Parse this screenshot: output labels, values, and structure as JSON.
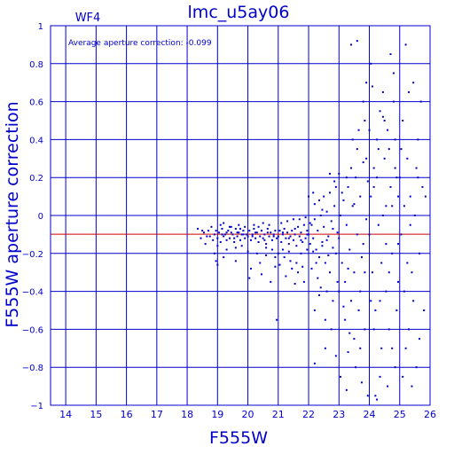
{
  "chart_data": {
    "type": "scatter",
    "title": "lmc_u5ay06",
    "chip_label": "WF4",
    "annotation": "Average aperture correction: -0.099",
    "xlabel": "F555W",
    "ylabel": "F555W aperture correction",
    "xlim": [
      13.5,
      26
    ],
    "ylim": [
      -1,
      1
    ],
    "x_ticks": [
      14,
      15,
      16,
      17,
      18,
      19,
      20,
      21,
      22,
      23,
      24,
      25,
      26
    ],
    "x_tick_labels": [
      "14",
      "15",
      "16",
      "17",
      "18",
      "19",
      "20",
      "21",
      "22",
      "23",
      "24",
      "25",
      "26"
    ],
    "y_ticks": [
      -1,
      -0.8,
      -0.6,
      -0.4,
      -0.2,
      0,
      0.2,
      0.4,
      0.6,
      0.8,
      1
    ],
    "y_tick_labels": [
      "−1",
      "−0.8",
      "−0.6",
      "−0.4",
      "−0.2",
      "0",
      "0.2",
      "0.4",
      "0.6",
      "0.8",
      "1"
    ],
    "grid": true,
    "reference_line": -0.099,
    "colors": {
      "axes": "#0000cc",
      "points": "#0000cc",
      "reference": "#cc0000",
      "background": "#ffffff"
    },
    "points": [
      [
        18.35,
        -0.07
      ],
      [
        18.45,
        -0.12
      ],
      [
        18.55,
        -0.09
      ],
      [
        18.6,
        -0.15
      ],
      [
        18.7,
        -0.08
      ],
      [
        18.75,
        -0.11
      ],
      [
        18.8,
        -0.06
      ],
      [
        18.85,
        -0.13
      ],
      [
        18.9,
        -0.1
      ],
      [
        18.95,
        -0.08
      ],
      [
        19.0,
        -0.12
      ],
      [
        19.05,
        -0.09
      ],
      [
        19.1,
        -0.14
      ],
      [
        19.15,
        -0.07
      ],
      [
        19.2,
        -0.11
      ],
      [
        19.25,
        -0.1
      ],
      [
        19.3,
        -0.13
      ],
      [
        19.35,
        -0.08
      ],
      [
        19.4,
        -0.12
      ],
      [
        19.45,
        -0.09
      ],
      [
        19.5,
        -0.1
      ],
      [
        19.55,
        -0.14
      ],
      [
        19.6,
        -0.07
      ],
      [
        19.65,
        -0.11
      ],
      [
        19.7,
        -0.09
      ],
      [
        19.75,
        -0.13
      ],
      [
        19.8,
        -0.1
      ],
      [
        19.85,
        -0.08
      ],
      [
        19.9,
        -0.12
      ],
      [
        19.95,
        -0.1
      ],
      [
        18.9,
        -0.2
      ],
      [
        19.0,
        -0.16
      ],
      [
        19.1,
        -0.05
      ],
      [
        19.2,
        -0.04
      ],
      [
        19.3,
        -0.18
      ],
      [
        19.4,
        -0.06
      ],
      [
        19.6,
        -0.17
      ],
      [
        19.7,
        -0.05
      ],
      [
        19.8,
        -0.16
      ],
      [
        19.9,
        -0.06
      ],
      [
        20.0,
        -0.11
      ],
      [
        20.05,
        -0.08
      ],
      [
        20.1,
        -0.13
      ],
      [
        20.15,
        -0.1
      ],
      [
        20.2,
        -0.07
      ],
      [
        20.25,
        -0.12
      ],
      [
        20.3,
        -0.09
      ],
      [
        20.35,
        -0.14
      ],
      [
        20.4,
        -0.11
      ],
      [
        20.45,
        -0.08
      ],
      [
        20.5,
        -0.12
      ],
      [
        20.55,
        -0.1
      ],
      [
        20.6,
        -0.15
      ],
      [
        20.65,
        -0.07
      ],
      [
        20.7,
        -0.11
      ],
      [
        20.75,
        -0.09
      ],
      [
        20.8,
        -0.13
      ],
      [
        20.85,
        -0.1
      ],
      [
        20.9,
        -0.08
      ],
      [
        20.95,
        -0.12
      ],
      [
        20.0,
        -0.19
      ],
      [
        20.2,
        -0.05
      ],
      [
        20.3,
        -0.2
      ],
      [
        20.5,
        -0.04
      ],
      [
        20.6,
        -0.21
      ],
      [
        20.7,
        -0.05
      ],
      [
        20.8,
        -0.18
      ],
      [
        20.9,
        -0.22
      ],
      [
        20.4,
        -0.25
      ],
      [
        20.1,
        -0.28
      ],
      [
        19.6,
        -0.24
      ],
      [
        19.2,
        -0.22
      ],
      [
        20.45,
        -0.31
      ],
      [
        20.05,
        -0.33
      ],
      [
        20.9,
        -0.27
      ],
      [
        20.75,
        -0.35
      ],
      [
        20.95,
        -0.55
      ],
      [
        20.6,
        -0.17
      ],
      [
        19.0,
        -0.26
      ],
      [
        18.95,
        -0.24
      ],
      [
        21.0,
        -0.11
      ],
      [
        21.05,
        -0.08
      ],
      [
        21.1,
        -0.14
      ],
      [
        21.15,
        -0.1
      ],
      [
        21.2,
        -0.07
      ],
      [
        21.25,
        -0.12
      ],
      [
        21.3,
        -0.09
      ],
      [
        21.35,
        -0.15
      ],
      [
        21.4,
        -0.11
      ],
      [
        21.45,
        -0.08
      ],
      [
        21.5,
        -0.13
      ],
      [
        21.55,
        -0.1
      ],
      [
        21.6,
        -0.16
      ],
      [
        21.65,
        -0.06
      ],
      [
        21.7,
        -0.11
      ],
      [
        21.75,
        -0.09
      ],
      [
        21.8,
        -0.14
      ],
      [
        21.85,
        -0.05
      ],
      [
        21.9,
        -0.12
      ],
      [
        21.95,
        -0.08
      ],
      [
        21.0,
        -0.2
      ],
      [
        21.1,
        -0.04
      ],
      [
        21.2,
        -0.22
      ],
      [
        21.3,
        -0.03
      ],
      [
        21.4,
        -0.24
      ],
      [
        21.5,
        -0.02
      ],
      [
        21.6,
        -0.25
      ],
      [
        21.7,
        -0.02
      ],
      [
        21.8,
        -0.27
      ],
      [
        21.9,
        -0.01
      ],
      [
        21.25,
        -0.32
      ],
      [
        21.45,
        -0.28
      ],
      [
        21.65,
        -0.3
      ],
      [
        21.85,
        -0.35
      ],
      [
        21.55,
        -0.36
      ],
      [
        21.95,
        -0.18
      ],
      [
        21.15,
        -0.18
      ],
      [
        21.35,
        -0.19
      ],
      [
        21.75,
        -0.2
      ],
      [
        21.05,
        -0.26
      ],
      [
        22.0,
        -0.1
      ],
      [
        22.05,
        -0.15
      ],
      [
        22.1,
        -0.05
      ],
      [
        22.15,
        -0.12
      ],
      [
        22.2,
        -0.02
      ],
      [
        22.25,
        -0.18
      ],
      [
        22.3,
        -0.08
      ],
      [
        22.35,
        -0.22
      ],
      [
        22.4,
        0.0
      ],
      [
        22.45,
        -0.14
      ],
      [
        22.5,
        -0.06
      ],
      [
        22.55,
        -0.25
      ],
      [
        22.6,
        0.02
      ],
      [
        22.65,
        -0.11
      ],
      [
        22.7,
        -0.3
      ],
      [
        22.75,
        -0.03
      ],
      [
        22.8,
        -0.17
      ],
      [
        22.85,
        0.05
      ],
      [
        22.9,
        -0.2
      ],
      [
        22.95,
        -0.09
      ],
      [
        22.1,
        -0.28
      ],
      [
        22.2,
        0.06
      ],
      [
        22.3,
        -0.33
      ],
      [
        22.4,
        -0.38
      ],
      [
        22.5,
        0.1
      ],
      [
        22.6,
        -0.4
      ],
      [
        22.7,
        0.12
      ],
      [
        22.8,
        -0.45
      ],
      [
        22.9,
        0.15
      ],
      [
        22.2,
        -0.5
      ],
      [
        22.0,
        0.1
      ],
      [
        22.15,
        0.12
      ],
      [
        22.35,
        0.08
      ],
      [
        22.55,
        -0.55
      ],
      [
        22.75,
        -0.6
      ],
      [
        22.85,
        0.18
      ],
      [
        22.95,
        -0.35
      ],
      [
        22.25,
        -0.25
      ],
      [
        22.45,
        -0.16
      ],
      [
        22.65,
        -0.21
      ],
      [
        22.2,
        -0.78
      ],
      [
        22.7,
        0.22
      ],
      [
        22.55,
        -0.7
      ],
      [
        22.9,
        -0.74
      ],
      [
        22.35,
        -0.42
      ],
      [
        22.05,
        -0.04
      ],
      [
        22.6,
        -0.13
      ],
      [
        22.8,
        -0.07
      ],
      [
        22.45,
        0.03
      ],
      [
        22.15,
        -0.19
      ],
      [
        23.0,
        -0.12
      ],
      [
        23.05,
        0.0
      ],
      [
        23.1,
        -0.25
      ],
      [
        23.15,
        0.08
      ],
      [
        23.2,
        -0.35
      ],
      [
        23.25,
        -0.05
      ],
      [
        23.3,
        0.15
      ],
      [
        23.35,
        -0.18
      ],
      [
        23.4,
        -0.45
      ],
      [
        23.45,
        0.05
      ],
      [
        23.5,
        -0.3
      ],
      [
        23.55,
        0.2
      ],
      [
        23.6,
        -0.1
      ],
      [
        23.65,
        -0.5
      ],
      [
        23.7,
        0.1
      ],
      [
        23.75,
        -0.22
      ],
      [
        23.8,
        0.28
      ],
      [
        23.85,
        -0.6
      ],
      [
        23.9,
        -0.02
      ],
      [
        23.95,
        0.18
      ],
      [
        23.0,
        -0.4
      ],
      [
        23.1,
        0.12
      ],
      [
        23.2,
        -0.55
      ],
      [
        23.3,
        -0.28
      ],
      [
        23.4,
        0.25
      ],
      [
        23.5,
        -0.65
      ],
      [
        23.6,
        0.35
      ],
      [
        23.7,
        -0.7
      ],
      [
        23.8,
        -0.15
      ],
      [
        23.9,
        0.3
      ],
      [
        23.05,
        -0.85
      ],
      [
        23.25,
        -0.92
      ],
      [
        23.45,
        0.4
      ],
      [
        23.55,
        -0.8
      ],
      [
        23.65,
        0.45
      ],
      [
        23.75,
        -0.88
      ],
      [
        23.85,
        0.5
      ],
      [
        23.95,
        -0.95
      ],
      [
        23.35,
        -0.62
      ],
      [
        23.15,
        -0.48
      ],
      [
        23.4,
        0.9
      ],
      [
        23.6,
        0.92
      ],
      [
        23.8,
        0.6
      ],
      [
        23.9,
        0.7
      ],
      [
        23.7,
        -0.4
      ],
      [
        23.25,
        0.2
      ],
      [
        23.85,
        -0.3
      ],
      [
        23.5,
        0.06
      ],
      [
        23.0,
        0.22
      ],
      [
        23.3,
        -0.72
      ],
      [
        24.0,
        -0.1
      ],
      [
        24.05,
        0.1
      ],
      [
        24.1,
        -0.3
      ],
      [
        24.15,
        0.25
      ],
      [
        24.2,
        -0.5
      ],
      [
        24.25,
        0.4
      ],
      [
        24.3,
        -0.05
      ],
      [
        24.35,
        0.55
      ],
      [
        24.4,
        -0.7
      ],
      [
        24.45,
        0.0
      ],
      [
        24.5,
        0.3
      ],
      [
        24.55,
        -0.4
      ],
      [
        24.6,
        0.45
      ],
      [
        24.65,
        -0.6
      ],
      [
        24.7,
        0.15
      ],
      [
        24.75,
        -0.2
      ],
      [
        24.8,
        0.6
      ],
      [
        24.85,
        -0.8
      ],
      [
        24.9,
        0.2
      ],
      [
        24.95,
        -0.35
      ],
      [
        24.05,
        0.8
      ],
      [
        24.1,
        0.68
      ],
      [
        24.2,
        -0.95
      ],
      [
        24.3,
        0.35
      ],
      [
        24.4,
        -0.25
      ],
      [
        24.5,
        0.5
      ],
      [
        24.6,
        -0.9
      ],
      [
        24.7,
        0.85
      ],
      [
        24.8,
        0.75
      ],
      [
        24.9,
        -0.5
      ],
      [
        24.0,
        0.45
      ],
      [
        24.15,
        -0.6
      ],
      [
        24.25,
        0.2
      ],
      [
        24.35,
        -0.45
      ],
      [
        24.45,
        0.65
      ],
      [
        24.55,
        -0.15
      ],
      [
        24.65,
        0.35
      ],
      [
        24.75,
        -0.7
      ],
      [
        24.85,
        0.4
      ],
      [
        24.95,
        0.1
      ],
      [
        24.25,
        -0.97
      ],
      [
        24.45,
        0.52
      ],
      [
        24.65,
        -0.3
      ],
      [
        24.85,
        0.25
      ],
      [
        24.55,
        0.05
      ],
      [
        24.35,
        -0.85
      ],
      [
        24.15,
        0.15
      ],
      [
        24.75,
        0.05
      ],
      [
        24.95,
        -0.15
      ],
      [
        24.05,
        -0.45
      ],
      [
        25.0,
        0.2
      ],
      [
        25.05,
        -0.1
      ],
      [
        25.1,
        0.5
      ],
      [
        25.15,
        -0.4
      ],
      [
        25.2,
        0.9
      ],
      [
        25.25,
        0.3
      ],
      [
        25.3,
        -0.6
      ],
      [
        25.35,
        0.1
      ],
      [
        25.4,
        -0.3
      ],
      [
        25.45,
        0.7
      ],
      [
        25.5,
        0.0
      ],
      [
        25.55,
        -0.8
      ],
      [
        25.6,
        0.4
      ],
      [
        25.65,
        -0.2
      ],
      [
        25.7,
        0.6
      ],
      [
        25.75,
        0.15
      ],
      [
        25.8,
        -0.5
      ],
      [
        25.85,
        0.1
      ],
      [
        25.1,
        -0.85
      ],
      [
        25.3,
        0.65
      ],
      [
        25.2,
        -0.7
      ],
      [
        25.4,
        -0.9
      ],
      [
        25.6,
        0.2
      ],
      [
        25.05,
        0.35
      ],
      [
        25.25,
        -0.25
      ],
      [
        25.45,
        -0.45
      ],
      [
        25.65,
        -0.65
      ],
      [
        25.15,
        0.05
      ],
      [
        25.35,
        -0.05
      ],
      [
        25.55,
        0.25
      ],
      [
        19.3,
        -0.09
      ],
      [
        19.45,
        -0.06
      ],
      [
        19.55,
        -0.12
      ],
      [
        19.65,
        -0.09
      ],
      [
        19.75,
        -0.07
      ],
      [
        19.85,
        -0.1
      ],
      [
        20.15,
        -0.11
      ],
      [
        20.25,
        -0.09
      ],
      [
        20.35,
        -0.06
      ],
      [
        20.55,
        -0.13
      ],
      [
        20.65,
        -0.09
      ],
      [
        20.85,
        -0.11
      ],
      [
        21.15,
        -0.09
      ],
      [
        21.35,
        -0.12
      ],
      [
        21.55,
        -0.07
      ],
      [
        21.75,
        -0.13
      ],
      [
        21.95,
        -0.1
      ],
      [
        19.15,
        -0.1
      ],
      [
        18.65,
        -0.11
      ],
      [
        18.5,
        -0.08
      ]
    ]
  }
}
